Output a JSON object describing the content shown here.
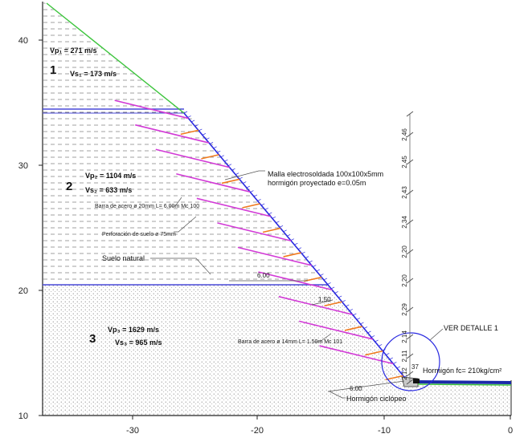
{
  "axes": {
    "x_ticks": [
      "-30",
      "-20",
      "-10",
      "0"
    ],
    "y_ticks": [
      "40",
      "30",
      "20",
      "10"
    ]
  },
  "layers": {
    "l1": {
      "number": "1",
      "vp": "Vp₁ = 271 m/s",
      "vs": "Vs₁ = 173 m/s"
    },
    "l2": {
      "number": "2",
      "vp": "Vp₂ = 1104 m/s",
      "vs": "Vs₂ = 633 m/s"
    },
    "l3": {
      "number": "3",
      "vp": "Vp₃ = 1629 m/s",
      "vs": "Vs₃ = 965 m/s"
    }
  },
  "annotations": {
    "malla_1": "Malla electrosoldada 100x100x5mm",
    "malla_2": "hormigón proyectado e=0.05m",
    "barra_20": "Barra de acero ø 20mm L= 6.00m Mc 100",
    "perforacion": "Perforación de suelo ø 75mm",
    "suelo": "Suelo natural",
    "barra_14": "Barra de acero ø 14mm L= 1.50m Mc 101",
    "ver_detalle": "VER DETALLE 1",
    "hormigon_fc": "Hormigón fc= 210kg/cm²",
    "hormigon_ciclopeo": "Hormigón ciclópeo"
  },
  "dimensions": {
    "d600_upper": "6.00",
    "d150": "1.50",
    "d600_lower": "6.00",
    "d37": "37",
    "vertical": [
      "2.46",
      "2.45",
      "2.43",
      "2.34",
      "2.20",
      "2.20",
      "2.29",
      "2.14",
      "2.11",
      "2.12"
    ]
  },
  "colors": {
    "boundary": "#4a4ad8",
    "nail": "#d23ad6",
    "drain": "#f07a1e",
    "ground": "#3cc43c",
    "detail": "#2a2ae0",
    "wall": "#2a2ae0"
  }
}
